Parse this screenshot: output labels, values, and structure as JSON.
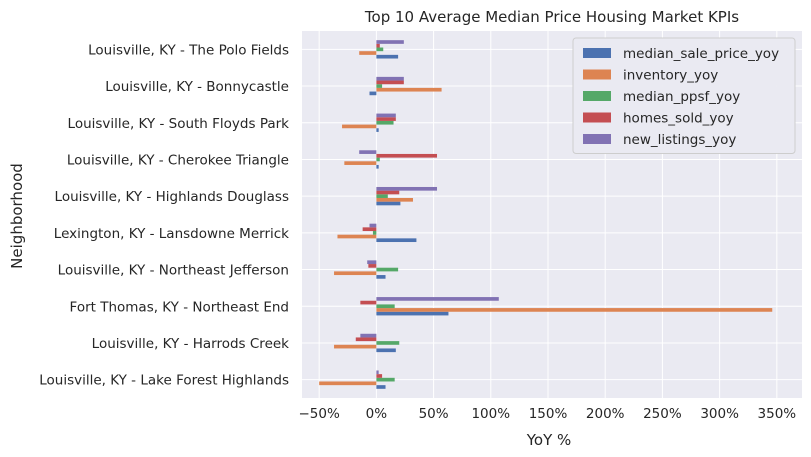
{
  "chart_data": {
    "type": "bar",
    "orientation": "horizontal",
    "title": "Top 10 Average Median Price Housing Market KPIs",
    "xlabel": "YoY %",
    "ylabel": "Neighborhood",
    "xlim": [
      -0.65,
      3.72
    ],
    "x_ticks": [
      -0.5,
      0,
      0.5,
      1.0,
      1.5,
      2.0,
      2.5,
      3.0,
      3.5
    ],
    "x_tick_labels": [
      "−50%",
      "0%",
      "50%",
      "100%",
      "150%",
      "200%",
      "250%",
      "300%",
      "350%"
    ],
    "grid": true,
    "legend_position": "top-right",
    "categories": [
      "Louisville, KY - Lake Forest Highlands",
      "Louisville, KY - Harrods Creek",
      "Fort Thomas, KY - Northeast End",
      "Louisville, KY - Northeast Jefferson",
      "Lexington, KY - Lansdowne Merrick",
      "Louisville, KY - Highlands Douglass",
      "Louisville, KY - Cherokee Triangle",
      "Louisville, KY - South Floyds Park",
      "Louisville, KY - Bonnycastle",
      "Louisville, KY - The Polo Fields"
    ],
    "series": [
      {
        "name": "median_sale_price_yoy",
        "color": "#4c72b0",
        "values": [
          0.08,
          0.17,
          0.63,
          0.08,
          0.35,
          0.21,
          0.02,
          0.02,
          -0.06,
          0.19
        ]
      },
      {
        "name": "inventory_yoy",
        "color": "#dd8452",
        "values": [
          -0.5,
          -0.37,
          3.46,
          -0.37,
          -0.34,
          0.32,
          -0.28,
          -0.3,
          0.57,
          -0.15
        ]
      },
      {
        "name": "median_ppsf_yoy",
        "color": "#55a868",
        "values": [
          0.16,
          0.2,
          0.16,
          0.19,
          -0.03,
          0.1,
          0.03,
          0.15,
          0.05,
          0.06
        ]
      },
      {
        "name": "homes_sold_yoy",
        "color": "#c44e52",
        "values": [
          0.05,
          -0.18,
          -0.14,
          -0.07,
          -0.12,
          0.2,
          0.53,
          0.17,
          0.24,
          0.03
        ]
      },
      {
        "name": "new_listings_yoy",
        "color": "#8172b3",
        "values": [
          0.02,
          -0.14,
          1.07,
          -0.08,
          -0.06,
          0.53,
          -0.15,
          0.17,
          0.24,
          0.24
        ]
      }
    ]
  }
}
